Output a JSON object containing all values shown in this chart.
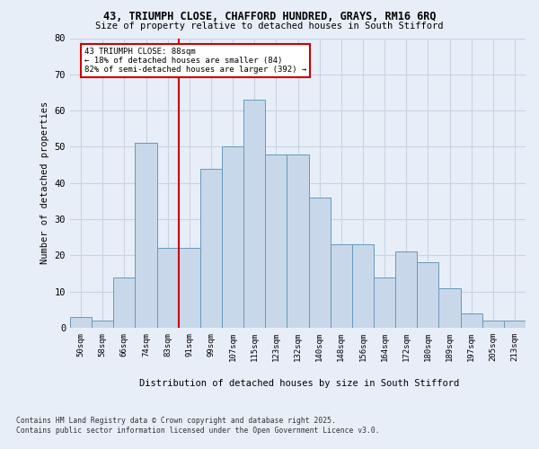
{
  "title_line1": "43, TRIUMPH CLOSE, CHAFFORD HUNDRED, GRAYS, RM16 6RQ",
  "title_line2": "Size of property relative to detached houses in South Stifford",
  "xlabel": "Distribution of detached houses by size in South Stifford",
  "ylabel": "Number of detached properties",
  "categories": [
    "50sqm",
    "58sqm",
    "66sqm",
    "74sqm",
    "83sqm",
    "91sqm",
    "99sqm",
    "107sqm",
    "115sqm",
    "123sqm",
    "132sqm",
    "140sqm",
    "148sqm",
    "156sqm",
    "164sqm",
    "172sqm",
    "180sqm",
    "189sqm",
    "197sqm",
    "205sqm",
    "213sqm"
  ],
  "values": [
    3,
    2,
    14,
    51,
    22,
    22,
    44,
    50,
    63,
    48,
    48,
    36,
    23,
    23,
    14,
    21,
    18,
    11,
    4,
    2,
    2
  ],
  "bar_color": "#c8d8ea",
  "bar_edge_color": "#6699bb",
  "grid_color": "#c8d4e2",
  "annotation_text": "43 TRIUMPH CLOSE: 88sqm\n← 18% of detached houses are smaller (84)\n82% of semi-detached houses are larger (392) →",
  "vline_x": 4.5,
  "vline_color": "#cc0000",
  "box_edge_color": "#cc0000",
  "ylim": [
    0,
    80
  ],
  "yticks": [
    0,
    10,
    20,
    30,
    40,
    50,
    60,
    70,
    80
  ],
  "bg_color": "#e8eef8",
  "footer1": "Contains HM Land Registry data © Crown copyright and database right 2025.",
  "footer2": "Contains public sector information licensed under the Open Government Licence v3.0."
}
